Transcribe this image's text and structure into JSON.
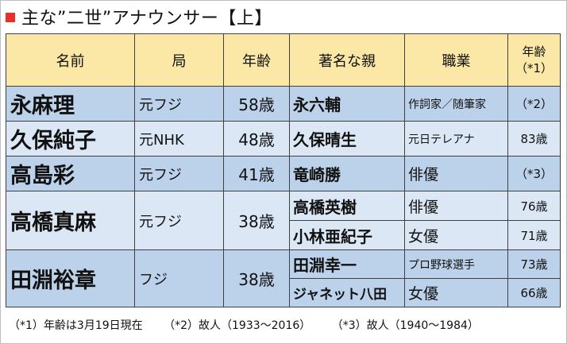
{
  "title": "主な”二世”アナウンサー【上】",
  "headers": {
    "name": "名前",
    "kyoku": "局",
    "age": "年齢",
    "parent": "著名な親",
    "job": "職業",
    "parent_age_line1": "年齢",
    "parent_age_line2": "（*1）"
  },
  "announcers": [
    {
      "name": "永麻理",
      "kyoku": "元フジ",
      "age": "58歳",
      "parents": [
        {
          "name": "永六輔",
          "job": "作詞家／随筆家",
          "age": "（*2）"
        }
      ]
    },
    {
      "name": "久保純子",
      "kyoku": "元NHK",
      "age": "48歳",
      "parents": [
        {
          "name": "久保晴生",
          "job": "元日テレアナ",
          "age": "83歳"
        }
      ]
    },
    {
      "name": "高島彩",
      "kyoku": "元フジ",
      "age": "41歳",
      "parents": [
        {
          "name": "竜崎勝",
          "job": "俳優",
          "age": "（*3）"
        }
      ]
    },
    {
      "name": "高橋真麻",
      "kyoku": "元フジ",
      "age": "38歳",
      "parents": [
        {
          "name": "高橋英樹",
          "job": "俳優",
          "age": "76歳"
        },
        {
          "name": "小林亜紀子",
          "job": "女優",
          "age": "71歳"
        }
      ]
    },
    {
      "name": "田淵裕章",
      "kyoku": "フジ",
      "age": "38歳",
      "parents": [
        {
          "name": "田淵幸一",
          "job": "プロ野球選手",
          "age": "73歳"
        },
        {
          "name": "ジャネット八田",
          "job": "女優",
          "age": "66歳"
        }
      ]
    }
  ],
  "footnotes": {
    "n1": "（*1）年齢は3月19日現在",
    "n2": "（*2）故人（1933～2016）",
    "n3": "（*3）故人（1940～1984）"
  },
  "colors": {
    "header_bg": "#fbe8a6",
    "row_dark": "#bcd1ea",
    "row_light": "#dbe7f5",
    "title_marker": "#e8302a"
  }
}
